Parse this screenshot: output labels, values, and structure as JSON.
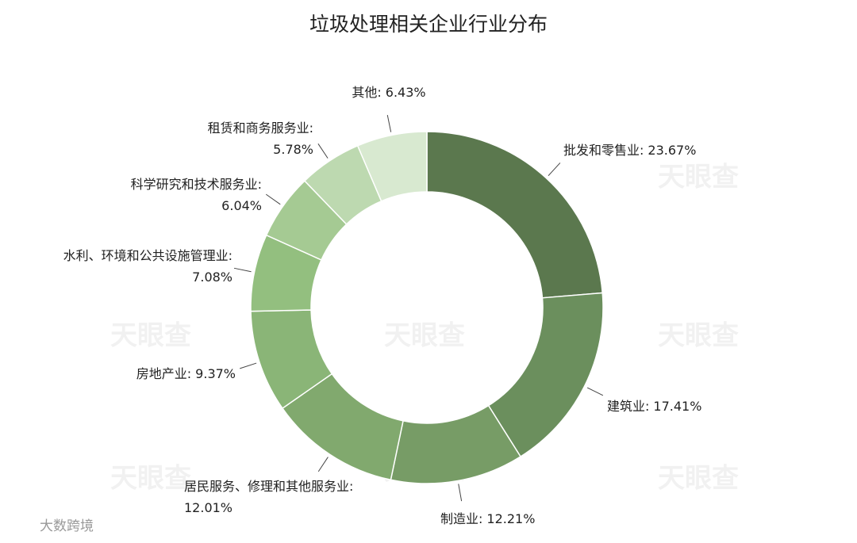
{
  "chart_data": {
    "type": "donut",
    "title": "垃圾处理相关企业行业分布",
    "categories": [
      "批发和零售业:",
      "建筑业:",
      "制造业:",
      "居民服务、修理和其他服务业:",
      "房地产业:",
      "水利、环境和公共设施管理业:",
      "科学研究和技术服务业:",
      "租赁和商务服务业:",
      "其他:"
    ],
    "values": [
      23.67,
      17.41,
      12.21,
      12.01,
      9.37,
      7.08,
      6.04,
      5.78,
      6.43
    ],
    "value_labels": [
      "23.67%",
      "17.41%",
      "12.21%",
      "12.01%",
      "9.37%",
      "7.08%",
      "6.04%",
      "5.78%",
      "6.43%"
    ],
    "colors": [
      "#5b784e",
      "#6b8f5d",
      "#779c66",
      "#81a96e",
      "#8ab577",
      "#93bf7f",
      "#a5ca93",
      "#bdd9b0",
      "#d8e9d0"
    ],
    "watermark": "天眼查",
    "source": "大数跨境"
  }
}
